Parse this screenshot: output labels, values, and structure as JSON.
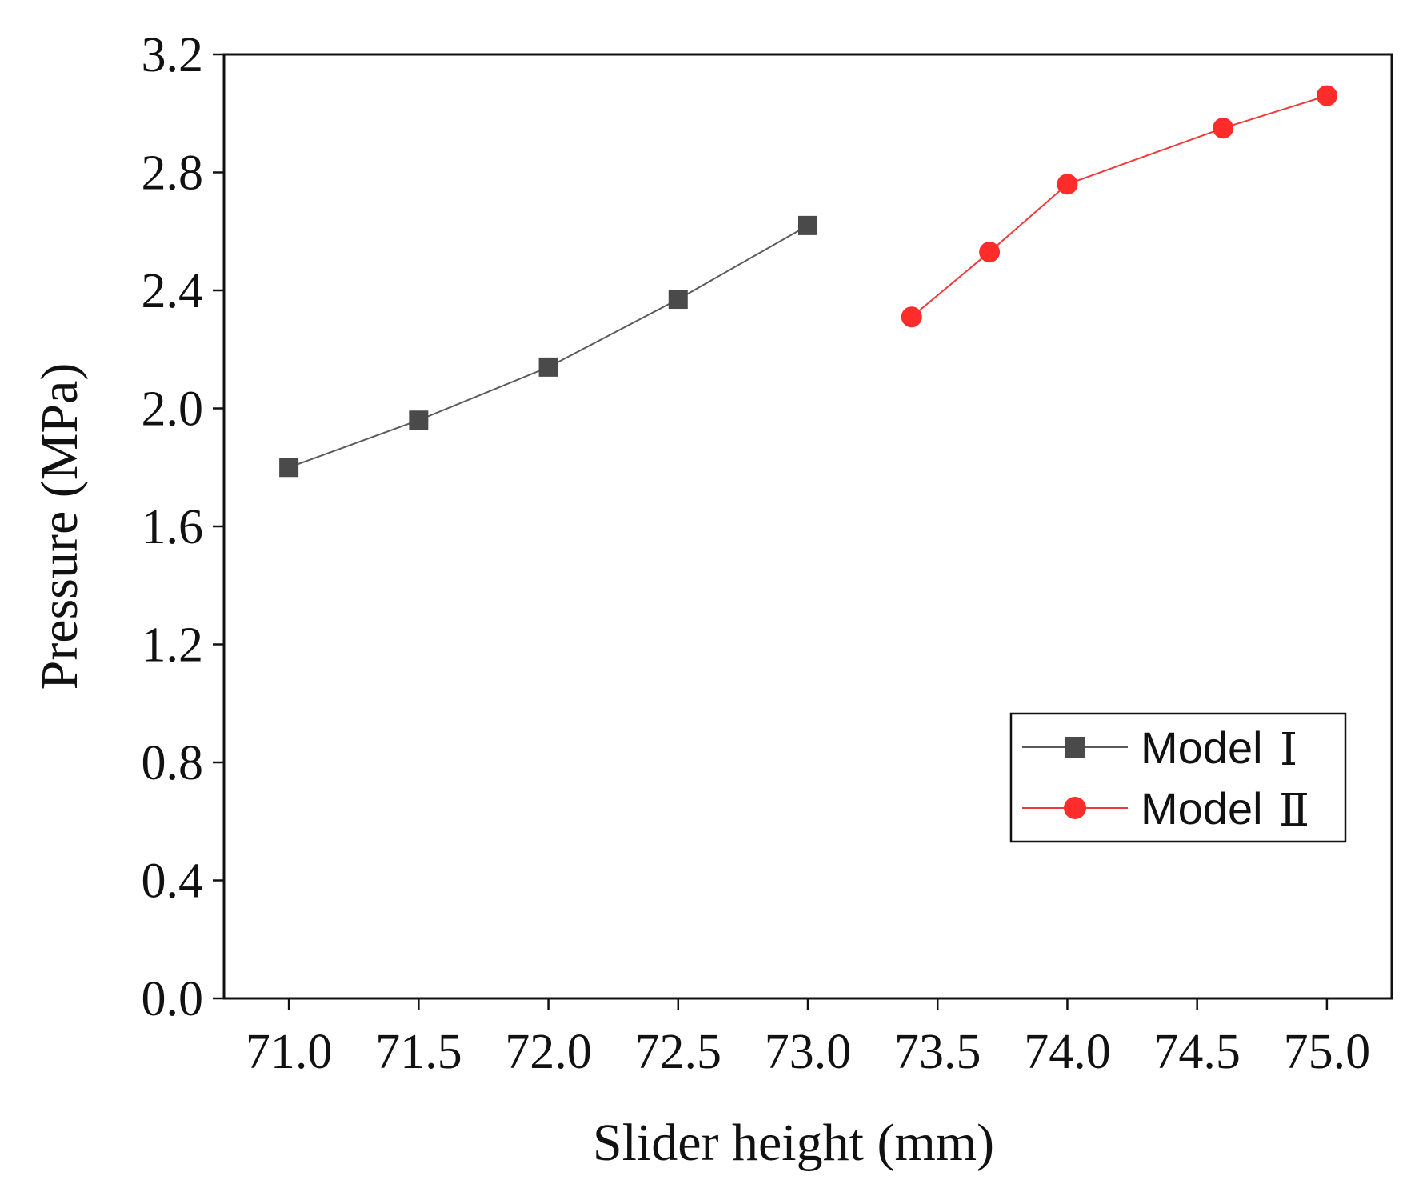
{
  "chart_data": {
    "type": "line",
    "title": "",
    "xlabel": "Slider height (mm)",
    "ylabel": "Pressure (MPa)",
    "xlim": [
      70.75,
      75.25
    ],
    "ylim": [
      0.0,
      3.2
    ],
    "grid": false,
    "x_ticks": [
      71.0,
      71.5,
      72.0,
      72.5,
      73.0,
      73.5,
      74.0,
      74.5,
      75.0
    ],
    "x_tick_labels": [
      "71.0",
      "71.5",
      "72.0",
      "72.5",
      "73.0",
      "73.5",
      "74.0",
      "74.5",
      "75.0"
    ],
    "y_ticks": [
      0.0,
      0.4,
      0.8,
      1.2,
      1.6,
      2.0,
      2.4,
      2.8,
      3.2
    ],
    "y_tick_labels": [
      "0.0",
      "0.4",
      "0.8",
      "1.2",
      "1.6",
      "2.0",
      "2.4",
      "2.8",
      "3.2"
    ],
    "legend_position": "right-lower",
    "series": [
      {
        "name": "Model",
        "numeral": "Ⅰ",
        "color": "#5a5a5a",
        "marker_color": "#4a4a4a",
        "marker": "square",
        "x": [
          71.0,
          71.5,
          72.0,
          72.5,
          73.0
        ],
        "y": [
          1.8,
          1.96,
          2.14,
          2.37,
          2.62
        ]
      },
      {
        "name": "Model",
        "numeral": "Ⅱ",
        "color": "#f03a3a",
        "marker_color": "#ff2c2c",
        "marker": "circle",
        "x": [
          73.4,
          73.7,
          74.0,
          74.6,
          75.0
        ],
        "y": [
          2.31,
          2.53,
          2.76,
          2.95,
          3.06
        ]
      }
    ]
  }
}
